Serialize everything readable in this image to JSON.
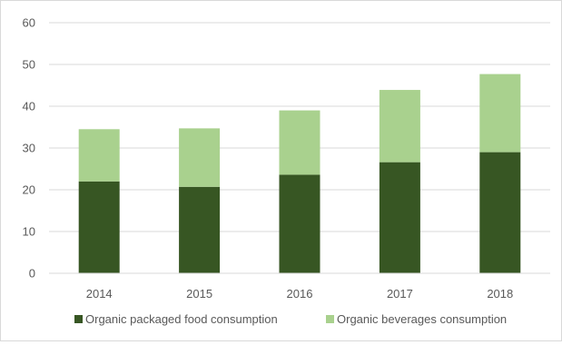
{
  "chart_data": {
    "type": "bar",
    "stacked": true,
    "title": "",
    "xlabel": "",
    "ylabel": "",
    "categories": [
      "2014",
      "2015",
      "2016",
      "2017",
      "2018"
    ],
    "series": [
      {
        "name": "Organic packaged food consumption",
        "color": "#375623",
        "values": [
          22.0,
          20.7,
          23.6,
          26.6,
          29.0
        ]
      },
      {
        "name": "Organic beverages consumption",
        "color": "#a9d18e",
        "values": [
          12.5,
          14.0,
          15.4,
          17.3,
          18.7
        ]
      }
    ],
    "ylim": [
      0,
      60
    ],
    "yticks": [
      0,
      10,
      20,
      30,
      40,
      50,
      60
    ],
    "grid": true,
    "legend_position": "bottom"
  }
}
